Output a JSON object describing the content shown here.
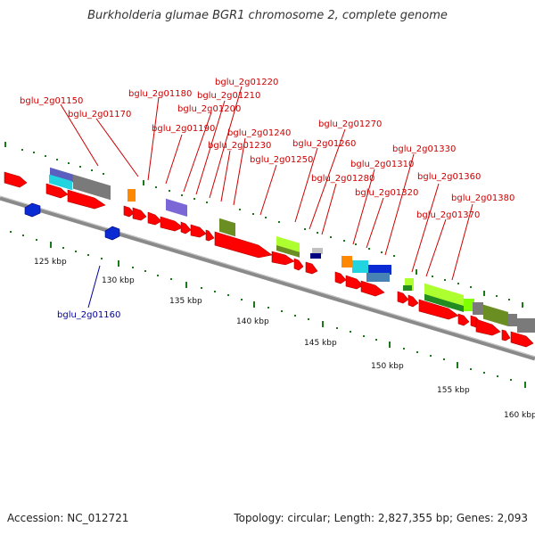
{
  "title": "Burkholderia glumae BGR1 chromosome 2, complete genome",
  "accession": "Accession: NC_012721",
  "stats": "Topology: circular; Length: 2,827,355 bp; Genes: 2,093",
  "colors": {
    "label_red": "#cc0000",
    "label_blue": "#000099",
    "backbone": "#8a8a8a",
    "tick": "#1a7a1a"
  },
  "ruler": [
    "125 kbp",
    "130 kbp",
    "135 kbp",
    "140 kbp",
    "145 kbp",
    "150 kbp",
    "155 kbp",
    "160 kbp"
  ],
  "gene_labels": [
    "bglu_2g01150",
    "bglu_2g01170",
    "bglu_2g01180",
    "bglu_2g01190",
    "bglu_2g01200",
    "bglu_2g01210",
    "bglu_2g01220",
    "bglu_2g01230",
    "bglu_2g01240",
    "bglu_2g01250",
    "bglu_2g01260",
    "bglu_2g01270",
    "bglu_2g01280",
    "bglu_2g01310",
    "bglu_2g01320",
    "bglu_2g01330",
    "bglu_2g01360",
    "bglu_2g01370",
    "bglu_2g01380",
    "bglu_2g01160"
  ]
}
